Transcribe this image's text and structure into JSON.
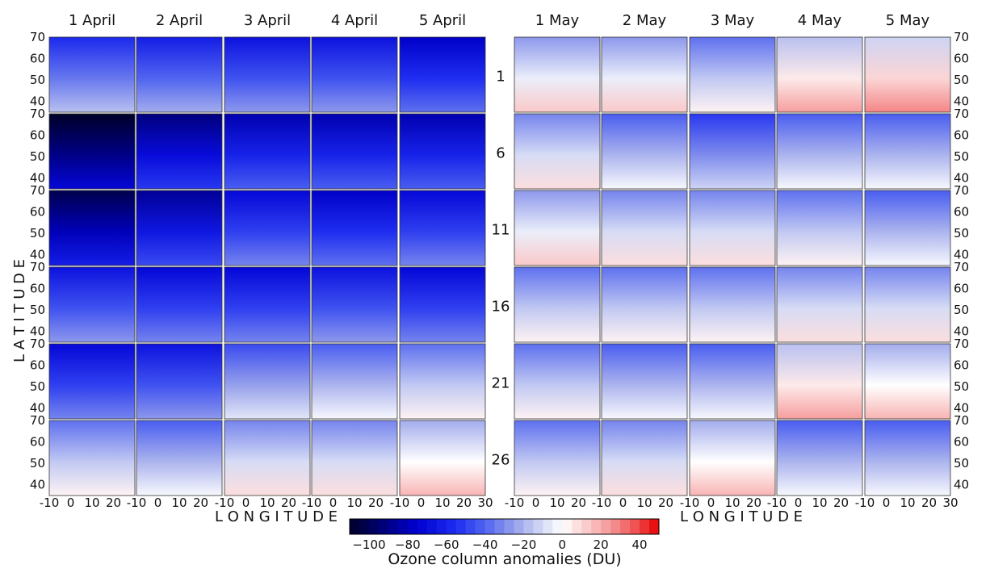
{
  "chart_data": {
    "type": "heatmap",
    "title": "",
    "xlabel": "L O N G I T U D E",
    "ylabel": "L A T I T U D E",
    "x": [
      -10,
      0,
      10,
      20,
      30
    ],
    "y": [
      35,
      70
    ],
    "xlim": [
      -10,
      30
    ],
    "ylim": [
      35,
      70
    ],
    "x_ticks": [
      "-10",
      "0",
      "10",
      "20",
      "-10",
      "0",
      "10",
      "20",
      "-10",
      "0",
      "10",
      "20",
      "-10",
      "0",
      "10",
      "20",
      "-10",
      "0",
      "10",
      "20",
      "30"
    ],
    "y_ticks": [
      "70",
      "60",
      "50",
      "40"
    ],
    "colorbar": {
      "label": "Ozone column anomalies (DU)",
      "range": [
        -110,
        50
      ],
      "ticks": [
        "−100",
        "−80",
        "−60",
        "−40",
        "−20",
        "0",
        "20",
        "40"
      ],
      "tick_values": [
        -100,
        -80,
        -60,
        -40,
        -20,
        0,
        20,
        40
      ],
      "cmap": "bwr",
      "low_color": "#000033",
      "mid_color": "#ffffff",
      "high_color": "#ff0000"
    },
    "panels_left": {
      "columns": [
        "1 April",
        "2 April",
        "3 April",
        "4 April",
        "5 April"
      ],
      "mean_anomaly": [
        [
          -35,
          -40,
          -45,
          -45,
          -55
        ],
        [
          -90,
          -70,
          -60,
          -60,
          -60
        ],
        [
          -80,
          -65,
          -50,
          -55,
          -50
        ],
        [
          -45,
          -50,
          -50,
          -45,
          -50
        ],
        [
          -50,
          -45,
          -25,
          -20,
          -15
        ],
        [
          -15,
          -20,
          -10,
          -10,
          0
        ]
      ]
    },
    "panels_right": {
      "columns": [
        "1 May",
        "2 May",
        "3 May",
        "4 May",
        "5 May"
      ],
      "mean_anomaly": [
        [
          -5,
          -5,
          -15,
          5,
          10
        ],
        [
          -10,
          -20,
          -30,
          -20,
          -20
        ],
        [
          -5,
          -10,
          -10,
          -15,
          -20
        ],
        [
          -15,
          -15,
          -15,
          -10,
          -10
        ],
        [
          -15,
          -20,
          -20,
          5,
          0
        ],
        [
          -15,
          -10,
          0,
          -20,
          -20
        ]
      ]
    },
    "row_labels": [
      "1",
      "6",
      "11",
      "16",
      "21",
      "26"
    ]
  }
}
